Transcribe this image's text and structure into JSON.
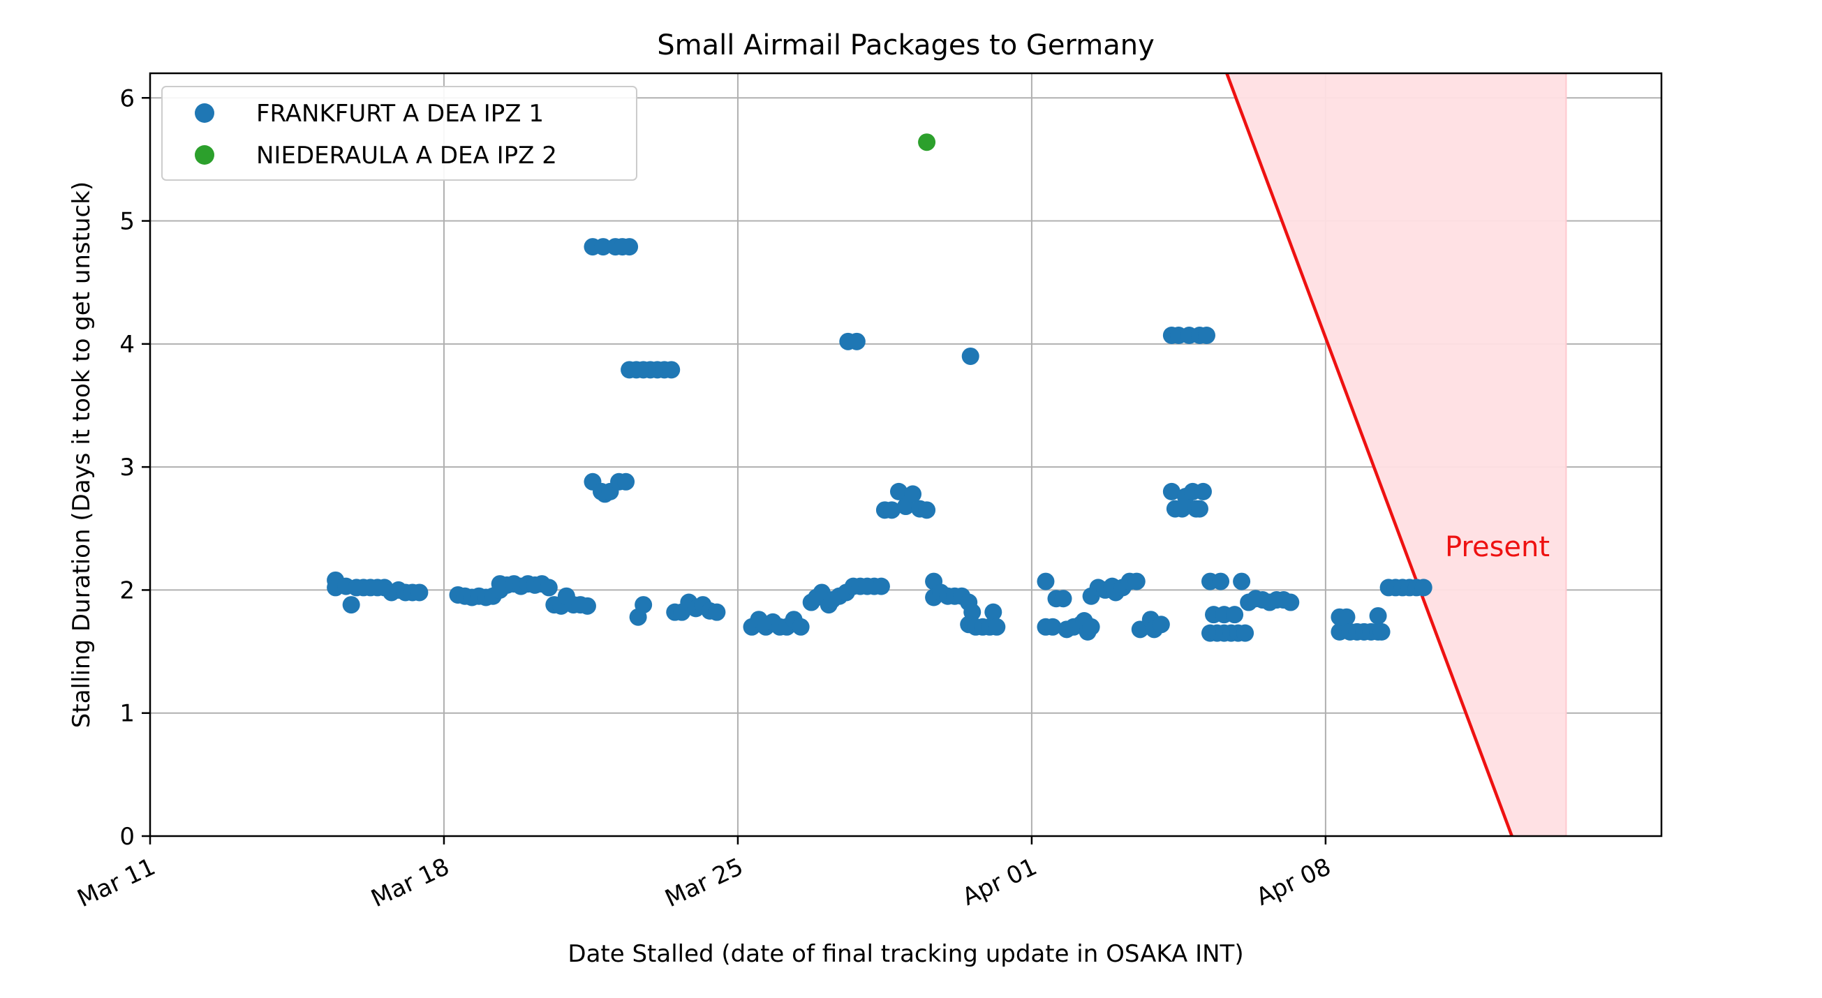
{
  "chart_data": {
    "type": "scatter",
    "title": "Small Airmail Packages to Germany",
    "xlabel": "Date Stalled (date of final tracking update in OSAKA INT)",
    "ylabel": "Stalling Duration (Days it took to get unstuck)",
    "x_ticks": [
      "Mar 11",
      "Mar 18",
      "Mar 25",
      "Apr 01",
      "Apr 08"
    ],
    "y_ticks": [
      "0",
      "1",
      "2",
      "3",
      "4",
      "5",
      "6"
    ],
    "xlim": [
      "2024-03-11",
      "2024-04-16T00:00"
    ],
    "ylim": [
      0,
      6.2
    ],
    "grid": true,
    "legend_position": "top-left",
    "colors": {
      "FRANKFURT A DEA IPZ 1": "#1f77b4",
      "NIEDERAULA A DEA IPZ 2": "#2ca02c",
      "present": "#ee1111",
      "present_fill": "#ffdfe3"
    },
    "annotations": [
      {
        "text": "Present",
        "color": "#ee1111"
      }
    ],
    "present_line": {
      "points": [
        {
          "x": "2024-04-05T15:30",
          "y": 6.2
        },
        {
          "x": "2024-04-12T10:30",
          "y": 0
        }
      ],
      "shaded_until": "2024-04-13T17:30"
    },
    "series": [
      {
        "name": "FRANKFURT A DEA IPZ 1",
        "points": [
          {
            "x": "2024-03-15T10:00",
            "y": 2.08
          },
          {
            "x": "2024-03-15T10:00",
            "y": 2.02
          },
          {
            "x": "2024-03-15T16:00",
            "y": 2.03
          },
          {
            "x": "2024-03-15T19:00",
            "y": 1.88
          },
          {
            "x": "2024-03-15T22:00",
            "y": 2.02
          },
          {
            "x": "2024-03-16T02:00",
            "y": 2.02
          },
          {
            "x": "2024-03-16T06:00",
            "y": 2.02
          },
          {
            "x": "2024-03-16T10:00",
            "y": 2.02
          },
          {
            "x": "2024-03-16T14:00",
            "y": 2.02
          },
          {
            "x": "2024-03-16T18:00",
            "y": 1.98
          },
          {
            "x": "2024-03-16T22:00",
            "y": 2.0
          },
          {
            "x": "2024-03-17T02:00",
            "y": 1.98
          },
          {
            "x": "2024-03-17T06:00",
            "y": 1.98
          },
          {
            "x": "2024-03-17T10:00",
            "y": 1.98
          },
          {
            "x": "2024-03-18T08:00",
            "y": 1.96
          },
          {
            "x": "2024-03-18T12:00",
            "y": 1.95
          },
          {
            "x": "2024-03-18T16:00",
            "y": 1.94
          },
          {
            "x": "2024-03-18T20:00",
            "y": 1.95
          },
          {
            "x": "2024-03-19T00:00",
            "y": 1.94
          },
          {
            "x": "2024-03-19T04:00",
            "y": 1.95
          },
          {
            "x": "2024-03-19T08:00",
            "y": 2.05
          },
          {
            "x": "2024-03-19T08:00",
            "y": 2.0
          },
          {
            "x": "2024-03-19T12:00",
            "y": 2.04
          },
          {
            "x": "2024-03-19T16:00",
            "y": 2.05
          },
          {
            "x": "2024-03-19T20:00",
            "y": 2.03
          },
          {
            "x": "2024-03-20T00:00",
            "y": 2.05
          },
          {
            "x": "2024-03-20T04:00",
            "y": 2.04
          },
          {
            "x": "2024-03-20T08:00",
            "y": 2.05
          },
          {
            "x": "2024-03-20T12:00",
            "y": 2.02
          },
          {
            "x": "2024-03-20T15:00",
            "y": 1.88
          },
          {
            "x": "2024-03-20T19:00",
            "y": 1.87
          },
          {
            "x": "2024-03-20T22:00",
            "y": 1.95
          },
          {
            "x": "2024-03-21T02:00",
            "y": 1.88
          },
          {
            "x": "2024-03-21T06:00",
            "y": 1.88
          },
          {
            "x": "2024-03-21T10:00",
            "y": 1.87
          },
          {
            "x": "2024-03-21T13:00",
            "y": 4.79
          },
          {
            "x": "2024-03-21T19:00",
            "y": 4.79
          },
          {
            "x": "2024-03-21T13:00",
            "y": 2.88
          },
          {
            "x": "2024-03-21T18:00",
            "y": 2.8
          },
          {
            "x": "2024-03-21T20:00",
            "y": 2.78
          },
          {
            "x": "2024-03-21T23:00",
            "y": 2.8
          },
          {
            "x": "2024-03-22T02:00",
            "y": 4.79
          },
          {
            "x": "2024-03-22T06:00",
            "y": 4.79
          },
          {
            "x": "2024-03-22T10:00",
            "y": 4.79
          },
          {
            "x": "2024-03-22T04:00",
            "y": 2.88
          },
          {
            "x": "2024-03-22T08:00",
            "y": 2.88
          },
          {
            "x": "2024-03-22T10:00",
            "y": 3.79
          },
          {
            "x": "2024-03-22T14:00",
            "y": 3.79
          },
          {
            "x": "2024-03-22T18:00",
            "y": 3.79
          },
          {
            "x": "2024-03-22T22:00",
            "y": 3.79
          },
          {
            "x": "2024-03-23T02:00",
            "y": 3.79
          },
          {
            "x": "2024-03-23T06:00",
            "y": 3.79
          },
          {
            "x": "2024-03-23T10:00",
            "y": 3.79
          },
          {
            "x": "2024-03-22T15:00",
            "y": 1.78
          },
          {
            "x": "2024-03-22T18:00",
            "y": 1.88
          },
          {
            "x": "2024-03-23T12:00",
            "y": 1.82
          },
          {
            "x": "2024-03-23T16:00",
            "y": 1.82
          },
          {
            "x": "2024-03-23T20:00",
            "y": 1.9
          },
          {
            "x": "2024-03-24T00:00",
            "y": 1.85
          },
          {
            "x": "2024-03-24T04:00",
            "y": 1.88
          },
          {
            "x": "2024-03-24T08:00",
            "y": 1.83
          },
          {
            "x": "2024-03-24T12:00",
            "y": 1.82
          },
          {
            "x": "2024-03-25T08:00",
            "y": 1.7
          },
          {
            "x": "2024-03-25T12:00",
            "y": 1.76
          },
          {
            "x": "2024-03-25T16:00",
            "y": 1.7
          },
          {
            "x": "2024-03-25T20:00",
            "y": 1.74
          },
          {
            "x": "2024-03-26T00:00",
            "y": 1.7
          },
          {
            "x": "2024-03-26T04:00",
            "y": 1.7
          },
          {
            "x": "2024-03-26T08:00",
            "y": 1.76
          },
          {
            "x": "2024-03-26T12:00",
            "y": 1.7
          },
          {
            "x": "2024-03-26T18:00",
            "y": 1.9
          },
          {
            "x": "2024-03-26T21:00",
            "y": 1.94
          },
          {
            "x": "2024-03-27T00:00",
            "y": 1.98
          },
          {
            "x": "2024-03-27T04:00",
            "y": 1.88
          },
          {
            "x": "2024-03-27T06:00",
            "y": 1.92
          },
          {
            "x": "2024-03-27T10:00",
            "y": 1.95
          },
          {
            "x": "2024-03-27T14:00",
            "y": 1.98
          },
          {
            "x": "2024-03-27T18:00",
            "y": 2.03
          },
          {
            "x": "2024-03-27T22:00",
            "y": 2.03
          },
          {
            "x": "2024-03-28T02:00",
            "y": 2.03
          },
          {
            "x": "2024-03-28T06:00",
            "y": 2.03
          },
          {
            "x": "2024-03-28T10:00",
            "y": 2.03
          },
          {
            "x": "2024-03-27T15:00",
            "y": 4.02
          },
          {
            "x": "2024-03-27T20:00",
            "y": 4.02
          },
          {
            "x": "2024-03-28T12:00",
            "y": 2.65
          },
          {
            "x": "2024-03-28T16:00",
            "y": 2.65
          },
          {
            "x": "2024-03-28T20:00",
            "y": 2.8
          },
          {
            "x": "2024-03-29T00:00",
            "y": 2.68
          },
          {
            "x": "2024-03-29T04:00",
            "y": 2.78
          },
          {
            "x": "2024-03-29T08:00",
            "y": 2.66
          },
          {
            "x": "2024-03-29T12:00",
            "y": 2.65
          },
          {
            "x": "2024-03-29T16:00",
            "y": 2.07
          },
          {
            "x": "2024-03-29T16:00",
            "y": 1.94
          },
          {
            "x": "2024-03-29T20:00",
            "y": 1.98
          },
          {
            "x": "2024-03-30T00:00",
            "y": 1.95
          },
          {
            "x": "2024-03-30T04:00",
            "y": 1.95
          },
          {
            "x": "2024-03-30T08:00",
            "y": 1.95
          },
          {
            "x": "2024-03-30T12:00",
            "y": 1.9
          },
          {
            "x": "2024-03-30T14:00",
            "y": 1.82
          },
          {
            "x": "2024-03-30T12:00",
            "y": 1.72
          },
          {
            "x": "2024-03-30T16:00",
            "y": 1.7
          },
          {
            "x": "2024-03-30T20:00",
            "y": 1.7
          },
          {
            "x": "2024-03-31T00:00",
            "y": 1.7
          },
          {
            "x": "2024-03-31T02:00",
            "y": 1.82
          },
          {
            "x": "2024-03-31T04:00",
            "y": 1.7
          },
          {
            "x": "2024-03-30T13:00",
            "y": 3.9
          },
          {
            "x": "2024-04-01T08:00",
            "y": 2.07
          },
          {
            "x": "2024-04-01T08:00",
            "y": 1.7
          },
          {
            "x": "2024-04-01T12:00",
            "y": 1.7
          },
          {
            "x": "2024-04-01T14:00",
            "y": 1.93
          },
          {
            "x": "2024-04-01T18:00",
            "y": 1.93
          },
          {
            "x": "2024-04-01T20:00",
            "y": 1.68
          },
          {
            "x": "2024-04-02T00:00",
            "y": 1.7
          },
          {
            "x": "2024-04-02T04:00",
            "y": 1.72
          },
          {
            "x": "2024-04-02T06:00",
            "y": 1.75
          },
          {
            "x": "2024-04-02T08:00",
            "y": 1.66
          },
          {
            "x": "2024-04-02T10:00",
            "y": 1.7
          },
          {
            "x": "2024-04-02T10:00",
            "y": 1.95
          },
          {
            "x": "2024-04-02T14:00",
            "y": 2.02
          },
          {
            "x": "2024-04-02T18:00",
            "y": 2.0
          },
          {
            "x": "2024-04-02T22:00",
            "y": 2.03
          },
          {
            "x": "2024-04-03T00:00",
            "y": 1.98
          },
          {
            "x": "2024-04-03T04:00",
            "y": 2.02
          },
          {
            "x": "2024-04-03T08:00",
            "y": 2.07
          },
          {
            "x": "2024-04-03T12:00",
            "y": 2.07
          },
          {
            "x": "2024-04-03T14:00",
            "y": 1.68
          },
          {
            "x": "2024-04-03T20:00",
            "y": 1.76
          },
          {
            "x": "2024-04-03T22:00",
            "y": 1.68
          },
          {
            "x": "2024-04-04T02:00",
            "y": 1.72
          },
          {
            "x": "2024-04-04T08:00",
            "y": 4.07
          },
          {
            "x": "2024-04-04T12:00",
            "y": 4.07
          },
          {
            "x": "2024-04-04T18:00",
            "y": 4.07
          },
          {
            "x": "2024-04-05T00:00",
            "y": 4.07
          },
          {
            "x": "2024-04-05T04:00",
            "y": 4.07
          },
          {
            "x": "2024-04-04T08:00",
            "y": 2.8
          },
          {
            "x": "2024-04-04T10:00",
            "y": 2.66
          },
          {
            "x": "2024-04-04T14:00",
            "y": 2.66
          },
          {
            "x": "2024-04-04T16:00",
            "y": 2.76
          },
          {
            "x": "2024-04-04T20:00",
            "y": 2.8
          },
          {
            "x": "2024-04-04T22:00",
            "y": 2.66
          },
          {
            "x": "2024-04-05T00:00",
            "y": 2.66
          },
          {
            "x": "2024-04-05T02:00",
            "y": 2.8
          },
          {
            "x": "2024-04-05T06:00",
            "y": 2.07
          },
          {
            "x": "2024-04-05T12:00",
            "y": 2.07
          },
          {
            "x": "2024-04-05T06:00",
            "y": 1.65
          },
          {
            "x": "2024-04-05T10:00",
            "y": 1.65
          },
          {
            "x": "2024-04-05T14:00",
            "y": 1.65
          },
          {
            "x": "2024-04-05T18:00",
            "y": 1.65
          },
          {
            "x": "2024-04-05T22:00",
            "y": 1.65
          },
          {
            "x": "2024-04-06T02:00",
            "y": 1.65
          },
          {
            "x": "2024-04-05T08:00",
            "y": 1.8
          },
          {
            "x": "2024-04-05T14:00",
            "y": 1.8
          },
          {
            "x": "2024-04-05T20:00",
            "y": 1.8
          },
          {
            "x": "2024-04-06T00:00",
            "y": 2.07
          },
          {
            "x": "2024-04-06T04:00",
            "y": 1.9
          },
          {
            "x": "2024-04-06T08:00",
            "y": 1.93
          },
          {
            "x": "2024-04-06T12:00",
            "y": 1.92
          },
          {
            "x": "2024-04-06T16:00",
            "y": 1.9
          },
          {
            "x": "2024-04-06T20:00",
            "y": 1.92
          },
          {
            "x": "2024-04-07T00:00",
            "y": 1.92
          },
          {
            "x": "2024-04-07T04:00",
            "y": 1.9
          },
          {
            "x": "2024-04-08T08:00",
            "y": 1.66
          },
          {
            "x": "2024-04-08T08:00",
            "y": 1.78
          },
          {
            "x": "2024-04-08T12:00",
            "y": 1.78
          },
          {
            "x": "2024-04-08T14:00",
            "y": 1.66
          },
          {
            "x": "2024-04-08T18:00",
            "y": 1.66
          },
          {
            "x": "2024-04-08T22:00",
            "y": 1.66
          },
          {
            "x": "2024-04-09T02:00",
            "y": 1.66
          },
          {
            "x": "2024-04-09T06:00",
            "y": 1.66
          },
          {
            "x": "2024-04-09T06:00",
            "y": 1.79
          },
          {
            "x": "2024-04-09T08:00",
            "y": 1.66
          },
          {
            "x": "2024-04-09T12:00",
            "y": 2.02
          },
          {
            "x": "2024-04-09T16:00",
            "y": 2.02
          },
          {
            "x": "2024-04-09T20:00",
            "y": 2.02
          },
          {
            "x": "2024-04-10T00:00",
            "y": 2.02
          },
          {
            "x": "2024-04-10T04:00",
            "y": 2.02
          },
          {
            "x": "2024-04-10T08:00",
            "y": 2.02
          }
        ]
      },
      {
        "name": "NIEDERAULA A DEA IPZ 2",
        "points": [
          {
            "x": "2024-03-29T12:00",
            "y": 5.64
          }
        ]
      }
    ]
  }
}
